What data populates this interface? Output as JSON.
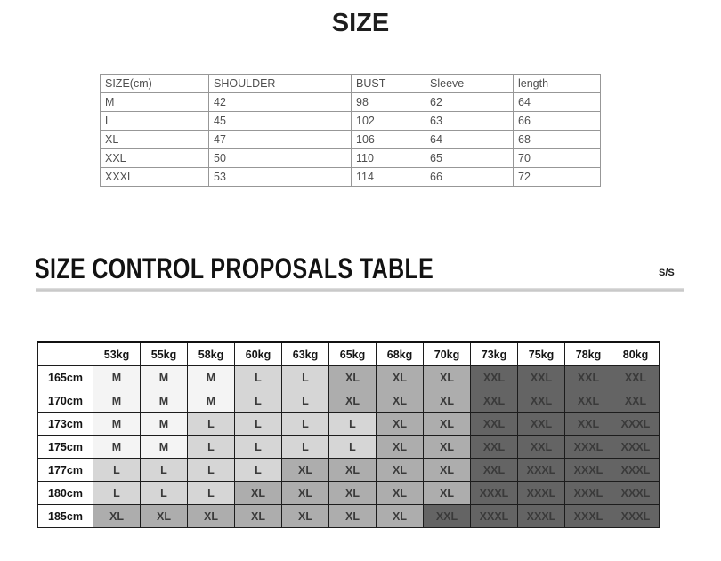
{
  "size_section": {
    "title": "SIZE",
    "table": {
      "headers": [
        "SIZE(cm)",
        "SHOULDER",
        "BUST",
        "Sleeve",
        "length"
      ],
      "rows": [
        [
          "M",
          "42",
          "98",
          "62",
          "64"
        ],
        [
          "L",
          "45",
          "102",
          "63",
          "66"
        ],
        [
          "XL",
          "47",
          "106",
          "64",
          "68"
        ],
        [
          "XXL",
          "50",
          "110",
          "65",
          "70"
        ],
        [
          "XXXL",
          "53",
          "114",
          "66",
          "72"
        ]
      ]
    }
  },
  "proposals_section": {
    "title": "SIZE CONTROL PROPOSALS TABLE",
    "season_label": "S/S",
    "table": {
      "corner_label": "",
      "weight_headers": [
        "53kg",
        "55kg",
        "58kg",
        "60kg",
        "63kg",
        "65kg",
        "68kg",
        "70kg",
        "73kg",
        "75kg",
        "78kg",
        "80kg"
      ],
      "rows": [
        {
          "height": "165cm",
          "sizes": [
            "M",
            "M",
            "M",
            "L",
            "L",
            "XL",
            "XL",
            "XL",
            "XXL",
            "XXL",
            "XXL",
            "XXL"
          ]
        },
        {
          "height": "170cm",
          "sizes": [
            "M",
            "M",
            "M",
            "L",
            "L",
            "XL",
            "XL",
            "XL",
            "XXL",
            "XXL",
            "XXL",
            "XXL"
          ]
        },
        {
          "height": "173cm",
          "sizes": [
            "M",
            "M",
            "L",
            "L",
            "L",
            "L",
            "XL",
            "XL",
            "XXL",
            "XXL",
            "XXL",
            "XXXL"
          ]
        },
        {
          "height": "175cm",
          "sizes": [
            "M",
            "M",
            "L",
            "L",
            "L",
            "L",
            "XL",
            "XL",
            "XXL",
            "XXL",
            "XXXL",
            "XXXL"
          ]
        },
        {
          "height": "177cm",
          "sizes": [
            "L",
            "L",
            "L",
            "L",
            "XL",
            "XL",
            "XL",
            "XL",
            "XXL",
            "XXXL",
            "XXXL",
            "XXXL"
          ]
        },
        {
          "height": "180cm",
          "sizes": [
            "L",
            "L",
            "L",
            "XL",
            "XL",
            "XL",
            "XL",
            "XL",
            "XXXL",
            "XXXL",
            "XXXL",
            "XXXL"
          ]
        },
        {
          "height": "185cm",
          "sizes": [
            "XL",
            "XL",
            "XL",
            "XL",
            "XL",
            "XL",
            "XL",
            "XXL",
            "XXXL",
            "XXXL",
            "XXXL",
            "XXXL"
          ]
        }
      ],
      "size_shades": {
        "M": "#f4f4f4",
        "L": "#d6d6d6",
        "XL": "#adadad",
        "XXL": "#646464",
        "XXXL": "#646464"
      }
    }
  },
  "colors": {
    "page_bg": "#ffffff",
    "heading_text": "#121212",
    "top_table_border": "#979797",
    "top_table_text": "#4f4f4f",
    "proposal_table_border": "#1c1c1c",
    "heading_rule": "#c5c5c5"
  },
  "chart_data": [
    {
      "type": "table",
      "title": "SIZE",
      "columns": [
        "SIZE(cm)",
        "SHOULDER",
        "BUST",
        "Sleeve",
        "length"
      ],
      "rows": [
        [
          "M",
          42,
          98,
          62,
          64
        ],
        [
          "L",
          45,
          102,
          63,
          66
        ],
        [
          "XL",
          47,
          106,
          64,
          68
        ],
        [
          "XXL",
          50,
          110,
          65,
          70
        ],
        [
          "XXXL",
          53,
          114,
          66,
          72
        ]
      ]
    },
    {
      "type": "table",
      "title": "SIZE CONTROL PROPOSALS TABLE",
      "annotation": "S/S",
      "columns": [
        "",
        "53kg",
        "55kg",
        "58kg",
        "60kg",
        "63kg",
        "65kg",
        "68kg",
        "70kg",
        "73kg",
        "75kg",
        "78kg",
        "80kg"
      ],
      "rows": [
        [
          "165cm",
          "M",
          "M",
          "M",
          "L",
          "L",
          "XL",
          "XL",
          "XL",
          "XXL",
          "XXL",
          "XXL",
          "XXL"
        ],
        [
          "170cm",
          "M",
          "M",
          "M",
          "L",
          "L",
          "XL",
          "XL",
          "XL",
          "XXL",
          "XXL",
          "XXL",
          "XXL"
        ],
        [
          "173cm",
          "M",
          "M",
          "L",
          "L",
          "L",
          "L",
          "XL",
          "XL",
          "XXL",
          "XXL",
          "XXL",
          "XXXL"
        ],
        [
          "175cm",
          "M",
          "M",
          "L",
          "L",
          "L",
          "L",
          "XL",
          "XL",
          "XXL",
          "XXL",
          "XXXL",
          "XXXL"
        ],
        [
          "177cm",
          "L",
          "L",
          "L",
          "L",
          "XL",
          "XL",
          "XL",
          "XL",
          "XXL",
          "XXXL",
          "XXXL",
          "XXXL"
        ],
        [
          "180cm",
          "L",
          "L",
          "L",
          "XL",
          "XL",
          "XL",
          "XL",
          "XL",
          "XXXL",
          "XXXL",
          "XXXL",
          "XXXL"
        ],
        [
          "185cm",
          "XL",
          "XL",
          "XL",
          "XL",
          "XL",
          "XL",
          "XL",
          "XXL",
          "XXXL",
          "XXXL",
          "XXXL",
          "XXXL"
        ]
      ],
      "layout_hints": "cells shaded light-to-dark by size: M lightest, XXL/XXXL darkest"
    }
  ]
}
